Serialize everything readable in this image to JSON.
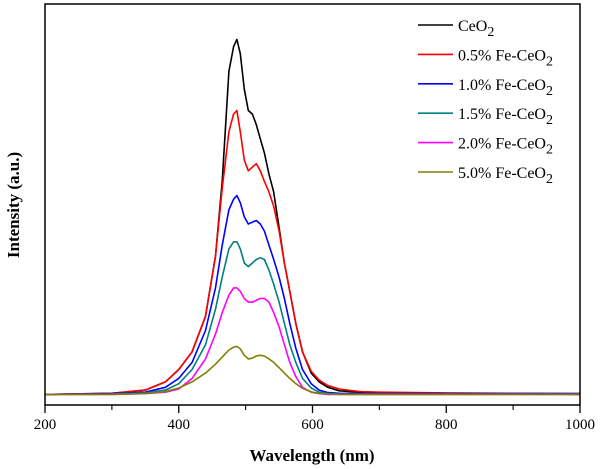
{
  "chart_data": {
    "type": "line",
    "title": "",
    "xlabel": "Wavelength (nm)",
    "ylabel": "Intensity (a.u.)",
    "xlim": [
      200,
      1000
    ],
    "ylim": [
      -0.03,
      1.1
    ],
    "xticks": [
      200,
      400,
      600,
      800,
      1000
    ],
    "xminor": [
      300,
      500,
      700,
      900
    ],
    "yticks_shown": false,
    "grid": false,
    "legend_placement": "top-right",
    "x": [
      200,
      300,
      350,
      380,
      400,
      420,
      440,
      455,
      465,
      475,
      482,
      487,
      492,
      498,
      504,
      510,
      516,
      522,
      528,
      535,
      542,
      550,
      558,
      566,
      575,
      585,
      598,
      610,
      623,
      640,
      670,
      700,
      800,
      900,
      1000
    ],
    "series": [
      {
        "name": "CeO2",
        "color": "#000000",
        "values": [
          0,
          0.003,
          0.012,
          0.035,
          0.07,
          0.12,
          0.22,
          0.39,
          0.6,
          0.91,
          0.98,
          1.0,
          0.96,
          0.86,
          0.8,
          0.79,
          0.76,
          0.72,
          0.68,
          0.62,
          0.57,
          0.47,
          0.37,
          0.29,
          0.2,
          0.12,
          0.06,
          0.035,
          0.02,
          0.01,
          0.006,
          0.004,
          0.003,
          0.002,
          0
        ]
      },
      {
        "name": "0.5% Fe-CeO2",
        "color": "#ff0000",
        "values": [
          0,
          0.003,
          0.012,
          0.035,
          0.07,
          0.12,
          0.22,
          0.39,
          0.58,
          0.74,
          0.79,
          0.8,
          0.74,
          0.66,
          0.63,
          0.64,
          0.65,
          0.63,
          0.6,
          0.57,
          0.53,
          0.46,
          0.37,
          0.29,
          0.2,
          0.12,
          0.065,
          0.04,
          0.025,
          0.015,
          0.008,
          0.006,
          0.004,
          0.003,
          0.002
        ]
      },
      {
        "name": "1.0% Fe-CeO2",
        "color": "#0000ff",
        "values": [
          0,
          0.002,
          0.006,
          0.02,
          0.045,
          0.09,
          0.18,
          0.3,
          0.42,
          0.52,
          0.55,
          0.56,
          0.54,
          0.5,
          0.48,
          0.485,
          0.49,
          0.48,
          0.46,
          0.42,
          0.38,
          0.33,
          0.27,
          0.2,
          0.13,
          0.07,
          0.03,
          0.012,
          0.005,
          0.003,
          0.002,
          0.002,
          0.002,
          0.002,
          0.002
        ]
      },
      {
        "name": "1.5% Fe-CeO2",
        "color": "#008080",
        "values": [
          0,
          0.001,
          0.004,
          0.012,
          0.03,
          0.07,
          0.14,
          0.24,
          0.33,
          0.41,
          0.43,
          0.43,
          0.41,
          0.37,
          0.36,
          0.37,
          0.38,
          0.385,
          0.38,
          0.35,
          0.31,
          0.26,
          0.2,
          0.14,
          0.09,
          0.045,
          0.018,
          0.006,
          0.002,
          0.001,
          0.001,
          0.001,
          0.001,
          0.001,
          0.001
        ]
      },
      {
        "name": "2.0% Fe-CeO2",
        "color": "#ff00ff",
        "values": [
          0,
          0,
          0.002,
          0.006,
          0.015,
          0.045,
          0.1,
          0.17,
          0.23,
          0.28,
          0.3,
          0.3,
          0.29,
          0.27,
          0.26,
          0.26,
          0.265,
          0.27,
          0.27,
          0.26,
          0.23,
          0.19,
          0.14,
          0.09,
          0.05,
          0.02,
          0.006,
          0.002,
          0,
          0,
          0,
          0,
          0,
          0,
          0
        ]
      },
      {
        "name": "5.0% Fe-CeO2",
        "color": "#808000",
        "values": [
          0,
          0,
          0.002,
          0.008,
          0.018,
          0.035,
          0.06,
          0.085,
          0.105,
          0.125,
          0.133,
          0.135,
          0.128,
          0.11,
          0.1,
          0.102,
          0.108,
          0.11,
          0.108,
          0.1,
          0.09,
          0.075,
          0.06,
          0.045,
          0.03,
          0.017,
          0.007,
          0.003,
          0.001,
          0,
          0,
          0,
          0,
          0,
          0
        ]
      }
    ]
  }
}
